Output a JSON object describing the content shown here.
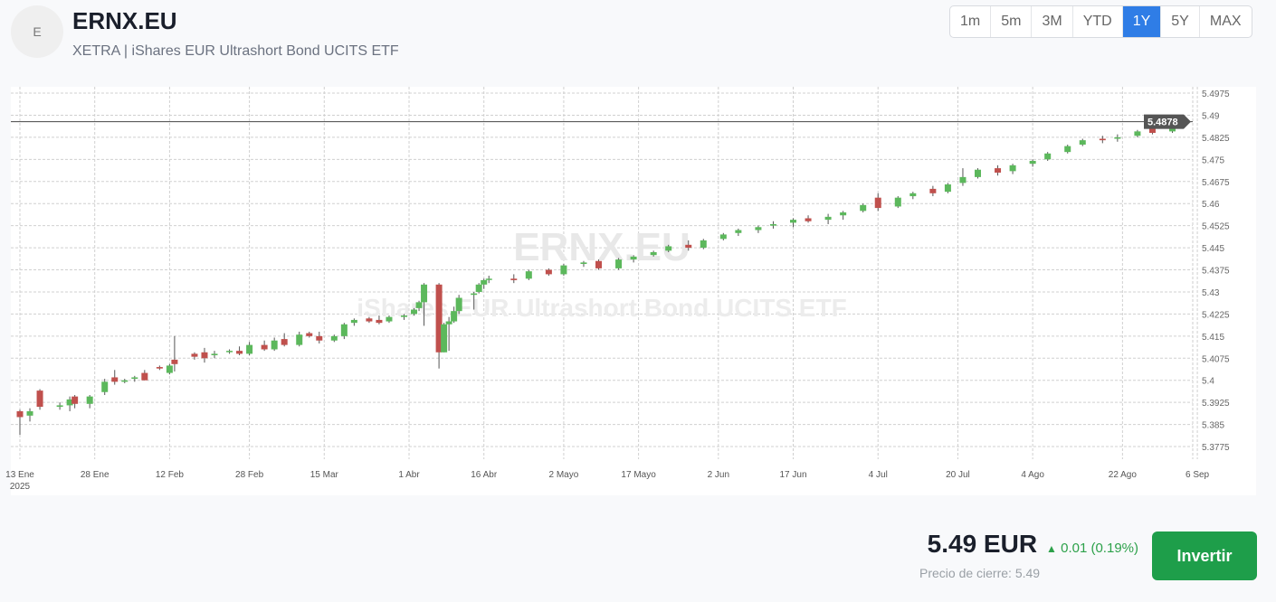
{
  "header": {
    "avatar_letter": "E",
    "ticker": "ERNX.EU",
    "subtitle": "XETRA | iShares EUR Ultrashort Bond UCITS ETF"
  },
  "ranges": [
    {
      "label": "1m",
      "active": false
    },
    {
      "label": "5m",
      "active": false
    },
    {
      "label": "3M",
      "active": false
    },
    {
      "label": "YTD",
      "active": false
    },
    {
      "label": "1Y",
      "active": true
    },
    {
      "label": "5Y",
      "active": false
    },
    {
      "label": "MAX",
      "active": false
    }
  ],
  "colors": {
    "up": "#5cb85c",
    "down": "#c0504d",
    "accent": "#2f7de6",
    "button": "#1e9e4a",
    "positive": "#2da14a"
  },
  "chart_data": {
    "type": "candlestick",
    "watermark": {
      "title": "ERNX.EU",
      "subtitle": "iShares EUR Ultrashort Bond UCITS ETF"
    },
    "ylim": [
      5.3725,
      5.5
    ],
    "y_ticks": [
      "5.4975",
      "5.49",
      "5.4825",
      "5.475",
      "5.4675",
      "5.46",
      "5.4525",
      "5.445",
      "5.4375",
      "5.43",
      "5.4225",
      "5.415",
      "5.4075",
      "5.4",
      "5.3925",
      "5.385",
      "5.3775"
    ],
    "x_ticks": [
      {
        "date": "2025-01-13",
        "label": "13 Ene",
        "sub": "2025"
      },
      {
        "date": "2025-01-28",
        "label": "28 Ene"
      },
      {
        "date": "2025-02-12",
        "label": "12 Feb"
      },
      {
        "date": "2025-02-28",
        "label": "28 Feb"
      },
      {
        "date": "2025-03-15",
        "label": "15 Mar"
      },
      {
        "date": "2025-04-01",
        "label": "1 Abr"
      },
      {
        "date": "2025-04-16",
        "label": "16 Abr"
      },
      {
        "date": "2025-05-02",
        "label": "2 Mayo"
      },
      {
        "date": "2025-05-17",
        "label": "17 Mayo"
      },
      {
        "date": "2025-06-02",
        "label": "2 Jun"
      },
      {
        "date": "2025-06-17",
        "label": "17 Jun"
      },
      {
        "date": "2025-07-04",
        "label": "4 Jul"
      },
      {
        "date": "2025-07-20",
        "label": "20 Jul"
      },
      {
        "date": "2025-08-04",
        "label": "4 Ago"
      },
      {
        "date": "2025-08-22",
        "label": "22 Ago"
      },
      {
        "date": "2025-09-06",
        "label": "6 Sep"
      }
    ],
    "grid": true,
    "last_price": "5.4878",
    "ohlc": [
      [
        "2025-01-13",
        5.3895,
        5.39,
        5.3815,
        5.3875
      ],
      [
        "2025-01-15",
        5.388,
        5.3905,
        5.386,
        5.3895
      ],
      [
        "2025-01-17",
        5.3965,
        5.397,
        5.39,
        5.391
      ],
      [
        "2025-01-21",
        5.391,
        5.3925,
        5.39,
        5.3915
      ],
      [
        "2025-01-23",
        5.3915,
        5.3945,
        5.3895,
        5.3935
      ],
      [
        "2025-01-24",
        5.3945,
        5.395,
        5.3905,
        5.392
      ],
      [
        "2025-01-27",
        5.392,
        5.395,
        5.3905,
        5.3945
      ],
      [
        "2025-01-30",
        5.396,
        5.4005,
        5.395,
        5.3995
      ],
      [
        "2025-02-01",
        5.401,
        5.4035,
        5.3985,
        5.3995
      ],
      [
        "2025-02-03",
        5.3995,
        5.4005,
        5.399,
        5.4
      ],
      [
        "2025-02-05",
        5.4005,
        5.4015,
        5.3995,
        5.401
      ],
      [
        "2025-02-07",
        5.4025,
        5.4035,
        5.4,
        5.4
      ],
      [
        "2025-02-10",
        5.4045,
        5.405,
        5.4035,
        5.404
      ],
      [
        "2025-02-12",
        5.4025,
        5.4055,
        5.402,
        5.405
      ],
      [
        "2025-02-13",
        5.407,
        5.415,
        5.403,
        5.4055
      ],
      [
        "2025-02-17",
        5.409,
        5.4095,
        5.407,
        5.408
      ],
      [
        "2025-02-19",
        5.4095,
        5.411,
        5.406,
        5.4075
      ],
      [
        "2025-02-21",
        5.4085,
        5.41,
        5.4075,
        5.409
      ],
      [
        "2025-02-24",
        5.41,
        5.4105,
        5.409,
        5.41
      ],
      [
        "2025-02-26",
        5.41,
        5.4115,
        5.4085,
        5.409
      ],
      [
        "2025-02-28",
        5.409,
        5.413,
        5.4085,
        5.412
      ],
      [
        "2025-03-03",
        5.412,
        5.4135,
        5.41,
        5.4105
      ],
      [
        "2025-03-05",
        5.4105,
        5.4145,
        5.41,
        5.4135
      ],
      [
        "2025-03-07",
        5.414,
        5.416,
        5.4115,
        5.412
      ],
      [
        "2025-03-10",
        5.412,
        5.4165,
        5.4115,
        5.4155
      ],
      [
        "2025-03-12",
        5.416,
        5.4165,
        5.4145,
        5.415
      ],
      [
        "2025-03-14",
        5.415,
        5.4165,
        5.4125,
        5.4135
      ],
      [
        "2025-03-17",
        5.4135,
        5.4155,
        5.413,
        5.415
      ],
      [
        "2025-03-19",
        5.415,
        5.4195,
        5.414,
        5.419
      ],
      [
        "2025-03-21",
        5.4195,
        5.421,
        5.4185,
        5.4205
      ],
      [
        "2025-03-24",
        5.421,
        5.4215,
        5.4195,
        5.42
      ],
      [
        "2025-03-26",
        5.4205,
        5.422,
        5.419,
        5.4195
      ],
      [
        "2025-03-28",
        5.42,
        5.422,
        5.4195,
        5.4215
      ],
      [
        "2025-03-31",
        5.4215,
        5.4225,
        5.4205,
        5.422
      ],
      [
        "2025-04-02",
        5.4225,
        5.4245,
        5.422,
        5.424
      ],
      [
        "2025-04-03",
        5.4245,
        5.427,
        5.4235,
        5.4265
      ],
      [
        "2025-04-04",
        5.4265,
        5.433,
        5.4185,
        5.4325
      ],
      [
        "2025-04-07",
        5.4325,
        5.433,
        5.404,
        5.4095
      ],
      [
        "2025-04-08",
        5.4095,
        5.4195,
        5.4095,
        5.419
      ],
      [
        "2025-04-09",
        5.419,
        5.4215,
        5.41,
        5.42
      ],
      [
        "2025-04-10",
        5.42,
        5.425,
        5.4195,
        5.4235
      ],
      [
        "2025-04-11",
        5.4235,
        5.429,
        5.4225,
        5.428
      ],
      [
        "2025-04-14",
        5.429,
        5.43,
        5.424,
        5.4295
      ],
      [
        "2025-04-15",
        5.43,
        5.433,
        5.4295,
        5.4325
      ],
      [
        "2025-04-16",
        5.4325,
        5.4345,
        5.431,
        5.434
      ],
      [
        "2025-04-17",
        5.4345,
        5.4355,
        5.433,
        5.4345
      ],
      [
        "2025-04-22",
        5.4345,
        5.436,
        5.433,
        5.434
      ],
      [
        "2025-04-25",
        5.4345,
        5.4375,
        5.434,
        5.437
      ],
      [
        "2025-04-29",
        5.4375,
        5.438,
        5.4355,
        5.436
      ],
      [
        "2025-05-02",
        5.436,
        5.4395,
        5.4355,
        5.439
      ],
      [
        "2025-05-06",
        5.4395,
        5.4405,
        5.4385,
        5.44
      ],
      [
        "2025-05-09",
        5.4405,
        5.441,
        5.4375,
        5.438
      ],
      [
        "2025-05-13",
        5.438,
        5.4415,
        5.4375,
        5.441
      ],
      [
        "2025-05-16",
        5.441,
        5.4425,
        5.44,
        5.442
      ],
      [
        "2025-05-20",
        5.4425,
        5.444,
        5.442,
        5.4435
      ],
      [
        "2025-05-23",
        5.444,
        5.446,
        5.4435,
        5.4455
      ],
      [
        "2025-05-27",
        5.446,
        5.4475,
        5.444,
        5.445
      ],
      [
        "2025-05-30",
        5.445,
        5.448,
        5.4445,
        5.4475
      ],
      [
        "2025-06-03",
        5.448,
        5.45,
        5.4475,
        5.4495
      ],
      [
        "2025-06-06",
        5.45,
        5.4515,
        5.449,
        5.451
      ],
      [
        "2025-06-10",
        5.451,
        5.4525,
        5.45,
        5.452
      ],
      [
        "2025-06-13",
        5.4525,
        5.454,
        5.4515,
        5.453
      ],
      [
        "2025-06-17",
        5.4535,
        5.455,
        5.452,
        5.4545
      ],
      [
        "2025-06-20",
        5.455,
        5.456,
        5.4535,
        5.454
      ],
      [
        "2025-06-24",
        5.4545,
        5.4565,
        5.453,
        5.4555
      ],
      [
        "2025-06-27",
        5.456,
        5.4575,
        5.4545,
        5.457
      ],
      [
        "2025-07-01",
        5.4575,
        5.46,
        5.457,
        5.4595
      ],
      [
        "2025-07-04",
        5.462,
        5.4635,
        5.4575,
        5.4585
      ],
      [
        "2025-07-08",
        5.459,
        5.4625,
        5.4585,
        5.462
      ],
      [
        "2025-07-11",
        5.4625,
        5.464,
        5.4615,
        5.4635
      ],
      [
        "2025-07-15",
        5.465,
        5.466,
        5.4625,
        5.4635
      ],
      [
        "2025-07-18",
        5.464,
        5.467,
        5.4635,
        5.4665
      ],
      [
        "2025-07-21",
        5.467,
        5.472,
        5.466,
        5.469
      ],
      [
        "2025-07-24",
        5.469,
        5.472,
        5.4685,
        5.4715
      ],
      [
        "2025-07-28",
        5.472,
        5.473,
        5.4695,
        5.4705
      ],
      [
        "2025-07-31",
        5.471,
        5.4735,
        5.47,
        5.473
      ],
      [
        "2025-08-04",
        5.4735,
        5.475,
        5.4725,
        5.4745
      ],
      [
        "2025-08-07",
        5.475,
        5.4775,
        5.4745,
        5.477
      ],
      [
        "2025-08-11",
        5.4775,
        5.48,
        5.477,
        5.4795
      ],
      [
        "2025-08-14",
        5.48,
        5.482,
        5.4795,
        5.4815
      ],
      [
        "2025-08-18",
        5.482,
        5.483,
        5.4805,
        5.4815
      ],
      [
        "2025-08-21",
        5.482,
        5.4835,
        5.481,
        5.4825
      ],
      [
        "2025-08-25",
        5.483,
        5.485,
        5.4825,
        5.4845
      ],
      [
        "2025-08-28",
        5.4855,
        5.4865,
        5.4835,
        5.484
      ],
      [
        "2025-09-01",
        5.4845,
        5.4875,
        5.484,
        5.487
      ],
      [
        "2025-09-03",
        5.4875,
        5.4885,
        5.4855,
        5.4878
      ]
    ]
  },
  "quote": {
    "price": "5.49 EUR",
    "change": "0.01 (0.19%)",
    "change_arrow": "▲",
    "close_label": "Precio de cierre: 5.49",
    "invest_label": "Invertir"
  }
}
